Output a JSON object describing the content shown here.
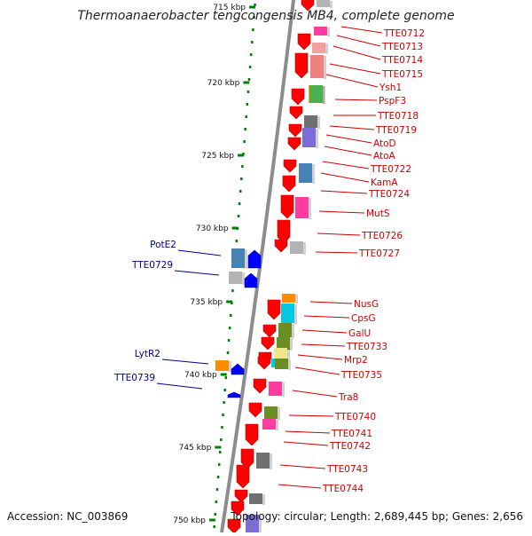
{
  "title": "Thermoanaerobacter tengcongensis MB4, complete genome",
  "accession": "Accession: NC_003869",
  "topology": "Topology: circular; Length: 2,689,445 bp; Genes: 2,656",
  "colors": {
    "backbone": "#8c8c8c",
    "forward_gene": "#ff0000",
    "reverse_gene": "#0000ff",
    "forward_label": "#cc0000",
    "reverse_label": "#00008b",
    "scale_dot": "#008000"
  },
  "scale_ticks": [
    {
      "label": "715 kbp",
      "kbp": 715
    },
    {
      "label": "720 kbp",
      "kbp": 720
    },
    {
      "label": "725 kbp",
      "kbp": 725
    },
    {
      "label": "730 kbp",
      "kbp": 730
    },
    {
      "label": "735 kbp",
      "kbp": 735
    },
    {
      "label": "740 kbp",
      "kbp": 740
    },
    {
      "label": "745 kbp",
      "kbp": 745
    },
    {
      "label": "750 kbp",
      "kbp": 750
    }
  ],
  "forward_labels": [
    "TTE0712",
    "TTE0713",
    "TTE0714",
    "TTE0715",
    "Ysh1",
    "PspF3",
    "TTE0718",
    "TTE0719",
    "AtoD",
    "AtoA",
    "TTE0722",
    "KamA",
    "TTE0724",
    "MutS",
    "TTE0726",
    "TTE0727",
    "NusG",
    "CpsG",
    "GalU",
    "TTE0733",
    "Mrp2",
    "TTE0735",
    "Tra8",
    "TTE0740",
    "TTE0741",
    "TTE0742",
    "TTE0743",
    "TTE0744"
  ],
  "reverse_labels": [
    "PotE2",
    "TTE0729",
    "LytR2",
    "TTE0739"
  ]
}
